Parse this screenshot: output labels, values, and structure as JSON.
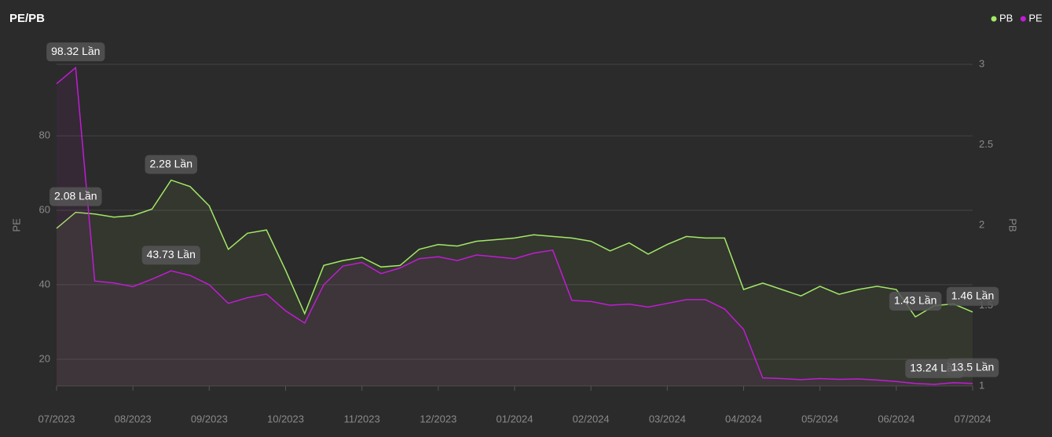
{
  "chart_data": {
    "type": "line",
    "title": "PE/PB",
    "y_label": "PE",
    "y2_label": "PB",
    "categories": [
      "07/2023",
      null,
      null,
      null,
      "08/2023",
      null,
      null,
      null,
      "09/2023",
      null,
      null,
      null,
      "10/2023",
      null,
      null,
      null,
      "11/2023",
      null,
      null,
      null,
      "12/2023",
      null,
      null,
      null,
      "01/2024",
      null,
      null,
      null,
      "02/2024",
      null,
      null,
      null,
      "03/2024",
      null,
      null,
      null,
      "04/2024",
      null,
      null,
      null,
      "05/2024",
      null,
      null,
      null,
      "06/2024",
      null,
      null,
      null,
      "07/2024"
    ],
    "series": [
      {
        "name": "PB",
        "color": "#a3e866",
        "axis": "y2",
        "values": [
          1.98,
          2.08,
          2.07,
          2.05,
          2.06,
          2.1,
          2.28,
          2.24,
          2.12,
          1.85,
          1.95,
          1.97,
          1.72,
          1.45,
          1.75,
          1.78,
          1.8,
          1.74,
          1.75,
          1.85,
          1.88,
          1.87,
          1.9,
          1.91,
          1.92,
          1.94,
          1.93,
          1.92,
          1.9,
          1.84,
          1.89,
          1.82,
          1.88,
          1.93,
          1.92,
          1.92,
          1.6,
          1.64,
          1.6,
          1.56,
          1.62,
          1.57,
          1.6,
          1.62,
          1.6,
          1.43,
          1.5,
          1.51,
          1.46
        ],
        "value_labels": [
          null,
          "2.08 Lần",
          null,
          null,
          null,
          null,
          "2.28 Lần",
          null,
          null,
          null,
          null,
          null,
          null,
          null,
          null,
          null,
          null,
          null,
          null,
          null,
          null,
          null,
          null,
          null,
          null,
          null,
          null,
          null,
          null,
          null,
          null,
          null,
          null,
          null,
          null,
          null,
          null,
          null,
          null,
          null,
          null,
          null,
          null,
          null,
          null,
          "1.43 Lần",
          null,
          null,
          "1.46 Lần"
        ]
      },
      {
        "name": "PE",
        "color": "#c21bd6",
        "values": [
          94,
          98.32,
          41,
          40.5,
          39.5,
          41.5,
          43.73,
          42.5,
          40,
          35,
          36.5,
          37.5,
          33,
          29.7,
          40,
          45,
          46,
          43,
          44.5,
          47,
          47.5,
          46.5,
          48,
          47.5,
          47,
          48.5,
          49.3,
          35.8,
          35.5,
          34.5,
          34.8,
          34,
          35,
          36,
          36,
          33.5,
          28,
          15,
          14.8,
          14.5,
          14.8,
          14.6,
          14.7,
          14.4,
          14,
          13.5,
          13.24,
          13.7,
          13.5
        ],
        "value_labels": [
          null,
          "98.32 Lần",
          null,
          null,
          null,
          null,
          "43.73 Lần",
          null,
          null,
          null,
          null,
          null,
          null,
          null,
          null,
          null,
          null,
          null,
          null,
          null,
          null,
          null,
          null,
          null,
          null,
          null,
          null,
          null,
          null,
          null,
          null,
          null,
          null,
          null,
          null,
          null,
          null,
          null,
          null,
          null,
          null,
          null,
          null,
          null,
          null,
          null,
          "13.24 Lần",
          null,
          "13.5 Lần"
        ]
      }
    ],
    "ylim": [
      12.8,
      99.2
    ],
    "yticks": [
      20,
      40,
      60,
      80
    ],
    "y2lim": [
      1,
      3
    ],
    "y2ticks": [
      1,
      1.5,
      2,
      2.5,
      3
    ],
    "grid": true,
    "legend": "top-right"
  }
}
